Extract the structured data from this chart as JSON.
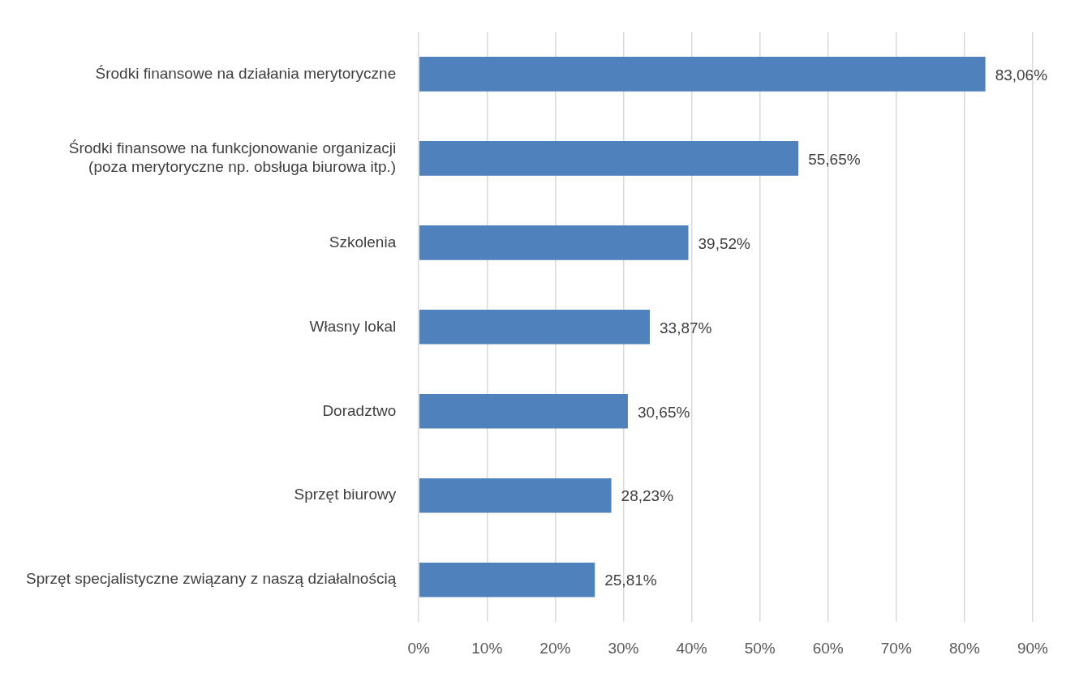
{
  "chart_data": {
    "type": "bar",
    "orientation": "horizontal",
    "categories": [
      "Środki finansowe na działania merytoryczne",
      "Środki finansowe na funkcjonowanie organizacji\n(poza merytoryczne np. obsługa biurowa itp.)",
      "Szkolenia",
      "Własny lokal",
      "Doradztwo",
      "Sprzęt biurowy",
      "Sprzęt specjalistyczne związany z naszą działalnością"
    ],
    "values": [
      83.06,
      55.65,
      39.52,
      33.87,
      30.65,
      28.23,
      25.81
    ],
    "value_labels": [
      "83,06%",
      "55,65%",
      "39,52%",
      "33,87%",
      "30,65%",
      "28,23%",
      "25,81%"
    ],
    "color": "#4f81bd",
    "xlim": [
      0,
      90
    ],
    "xticks": [
      {
        "value": 0,
        "label": "0%"
      },
      {
        "value": 10,
        "label": "10%"
      },
      {
        "value": 20,
        "label": "20%"
      },
      {
        "value": 30,
        "label": "30%"
      },
      {
        "value": 40,
        "label": "40%"
      },
      {
        "value": 50,
        "label": "50%"
      },
      {
        "value": 60,
        "label": "60%"
      },
      {
        "value": 70,
        "label": "70%"
      },
      {
        "value": 80,
        "label": "80%"
      },
      {
        "value": 90,
        "label": "90%"
      }
    ],
    "grid": "x",
    "legend": false
  }
}
